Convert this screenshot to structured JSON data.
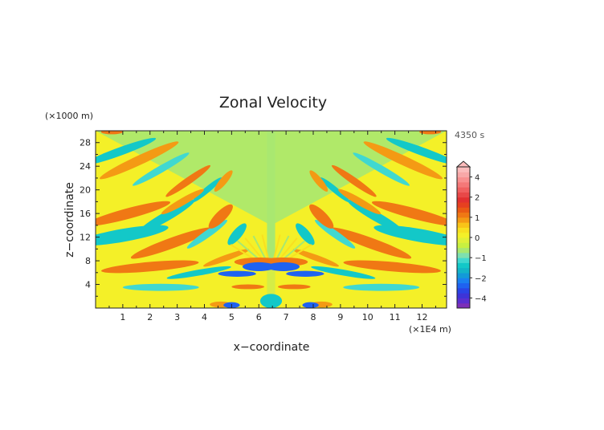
{
  "chart_data": {
    "type": "heatmap",
    "title": "Zonal Velocity",
    "time_label": "4350 s",
    "xlabel": "x−coordinate",
    "ylabel": "z−coordinate",
    "x_unit": "(×1E4 m)",
    "y_unit": "(×1000 m)",
    "xlim": [
      0,
      12.9
    ],
    "ylim": [
      0,
      30
    ],
    "x_ticks": [
      "1",
      "2",
      "3",
      "4",
      "5",
      "6",
      "7",
      "8",
      "9",
      "10",
      "11",
      "12"
    ],
    "y_ticks": [
      "4",
      "8",
      "12",
      "16",
      "20",
      "24",
      "28"
    ],
    "colorbar": {
      "levels": [
        -5,
        -4.5,
        -4,
        -3.5,
        -3,
        -2.5,
        -2,
        -1.75,
        -1.5,
        -1.25,
        -1,
        -0.75,
        -0.5,
        -0.25,
        0,
        0.25,
        0.5,
        0.75,
        1,
        1.25,
        1.5,
        1.75,
        2,
        2.5,
        3,
        3.5,
        4,
        4.5,
        5
      ],
      "colors": [
        "#7c2fb8",
        "#5a2fd0",
        "#3d34d8",
        "#2a44e6",
        "#1f62f0",
        "#1a80f0",
        "#139ad8",
        "#13b4c8",
        "#13c8c8",
        "#40d8d0",
        "#7ee0b0",
        "#a8e870",
        "#c8f040",
        "#e0f038",
        "#f4f028",
        "#f8e020",
        "#f8c418",
        "#f49a14",
        "#f07814",
        "#ea5a14",
        "#e64020",
        "#e23030",
        "#e84848",
        "#f06060",
        "#f47878",
        "#f89090",
        "#f8a8a8",
        "#fbbcbc"
      ],
      "labels": [
        "4",
        "2",
        "1",
        "0",
        "−1",
        "−2",
        "−4"
      ]
    },
    "grid": false,
    "legend_placement": "right"
  }
}
